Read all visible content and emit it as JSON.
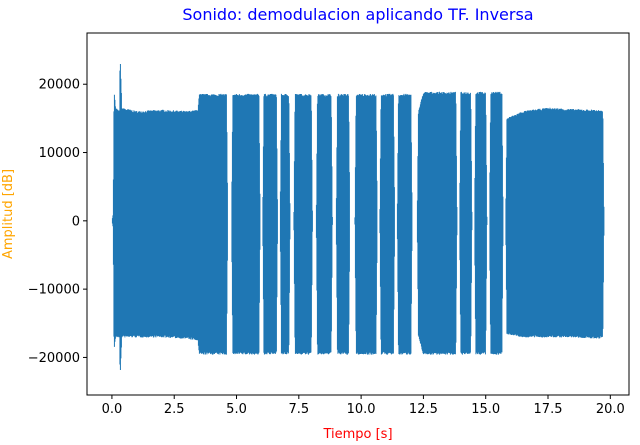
{
  "chart_data": {
    "type": "line",
    "title": "Sonido: demodulacion aplicando TF. Inversa",
    "xlabel": "Tiempo [s]",
    "ylabel": "Amplitud [dB]",
    "xlim": [
      -1.0,
      20.75
    ],
    "ylim": [
      -25500,
      27500
    ],
    "xticks": [
      0.0,
      2.5,
      5.0,
      7.5,
      10.0,
      12.5,
      15.0,
      17.5,
      20.0
    ],
    "xtick_labels": [
      "0.0",
      "2.5",
      "5.0",
      "7.5",
      "10.0",
      "12.5",
      "15.0",
      "17.5",
      "20.0"
    ],
    "yticks": [
      -20000,
      -10000,
      0,
      10000,
      20000
    ],
    "ytick_labels": [
      "−20000",
      "−10000",
      "0",
      "10000",
      "20000"
    ],
    "grid": false,
    "colors": {
      "line": "#1f77b4",
      "title": "#0000ff",
      "xlabel": "#ff0000",
      "ylabel": "#ffa500"
    },
    "series": [
      {
        "envelope_upper": [
          [
            0.0,
            0
          ],
          [
            0.05,
            1000
          ],
          [
            0.08,
            16000
          ],
          [
            0.1,
            18500
          ],
          [
            0.15,
            16500
          ],
          [
            0.3,
            16000
          ],
          [
            0.33,
            24500
          ],
          [
            0.4,
            16500
          ],
          [
            1.0,
            16000
          ],
          [
            2.0,
            16200
          ],
          [
            3.0,
            16000
          ],
          [
            3.45,
            16200
          ],
          [
            3.5,
            18500
          ],
          [
            4.6,
            18500
          ],
          [
            4.65,
            0
          ],
          [
            4.8,
            0
          ],
          [
            4.85,
            18500
          ],
          [
            5.9,
            18500
          ],
          [
            5.95,
            0
          ],
          [
            6.05,
            0
          ],
          [
            6.1,
            18500
          ],
          [
            6.6,
            18500
          ],
          [
            6.65,
            0
          ],
          [
            6.75,
            0
          ],
          [
            6.8,
            18500
          ],
          [
            7.1,
            18500
          ],
          [
            7.15,
            0
          ],
          [
            7.3,
            0
          ],
          [
            7.35,
            18500
          ],
          [
            8.0,
            18500
          ],
          [
            8.05,
            0
          ],
          [
            8.2,
            0
          ],
          [
            8.25,
            18500
          ],
          [
            8.8,
            18500
          ],
          [
            8.85,
            0
          ],
          [
            9.0,
            0
          ],
          [
            9.05,
            18500
          ],
          [
            9.5,
            18500
          ],
          [
            9.55,
            0
          ],
          [
            9.75,
            0
          ],
          [
            9.8,
            18500
          ],
          [
            10.6,
            18500
          ],
          [
            10.65,
            0
          ],
          [
            10.75,
            0
          ],
          [
            10.8,
            18500
          ],
          [
            11.3,
            18500
          ],
          [
            11.35,
            0
          ],
          [
            11.45,
            0
          ],
          [
            11.5,
            18500
          ],
          [
            12.0,
            18500
          ],
          [
            12.05,
            0
          ],
          [
            12.25,
            0
          ],
          [
            12.3,
            16000
          ],
          [
            12.5,
            18800
          ],
          [
            13.8,
            18800
          ],
          [
            13.85,
            0
          ],
          [
            13.95,
            0
          ],
          [
            14.0,
            18800
          ],
          [
            14.4,
            18800
          ],
          [
            14.45,
            0
          ],
          [
            14.55,
            0
          ],
          [
            14.6,
            18800
          ],
          [
            15.0,
            18800
          ],
          [
            15.05,
            0
          ],
          [
            15.15,
            0
          ],
          [
            15.2,
            18800
          ],
          [
            15.65,
            18800
          ],
          [
            15.7,
            0
          ],
          [
            15.8,
            0
          ],
          [
            15.85,
            15000
          ],
          [
            16.5,
            16000
          ],
          [
            17.5,
            16500
          ],
          [
            18.5,
            16300
          ],
          [
            19.5,
            16200
          ],
          [
            19.7,
            16000
          ],
          [
            19.75,
            0
          ]
        ],
        "envelope_lower": [
          [
            0.0,
            0
          ],
          [
            0.05,
            -1000
          ],
          [
            0.08,
            -17000
          ],
          [
            0.1,
            -18500
          ],
          [
            0.15,
            -17000
          ],
          [
            0.3,
            -17000
          ],
          [
            0.33,
            -23000
          ],
          [
            0.4,
            -17000
          ],
          [
            1.0,
            -17000
          ],
          [
            2.0,
            -17000
          ],
          [
            3.0,
            -17200
          ],
          [
            3.45,
            -17500
          ],
          [
            3.5,
            -19500
          ],
          [
            4.6,
            -19500
          ],
          [
            4.65,
            0
          ],
          [
            4.8,
            0
          ],
          [
            4.85,
            -19500
          ],
          [
            5.9,
            -19500
          ],
          [
            5.95,
            0
          ],
          [
            6.05,
            0
          ],
          [
            6.1,
            -19500
          ],
          [
            6.6,
            -19500
          ],
          [
            6.65,
            0
          ],
          [
            6.75,
            0
          ],
          [
            6.8,
            -19500
          ],
          [
            7.1,
            -19500
          ],
          [
            7.15,
            0
          ],
          [
            7.3,
            0
          ],
          [
            7.35,
            -19500
          ],
          [
            8.0,
            -19500
          ],
          [
            8.05,
            0
          ],
          [
            8.2,
            0
          ],
          [
            8.25,
            -19500
          ],
          [
            8.8,
            -19500
          ],
          [
            8.85,
            0
          ],
          [
            9.0,
            0
          ],
          [
            9.05,
            -19500
          ],
          [
            9.5,
            -19500
          ],
          [
            9.55,
            0
          ],
          [
            9.75,
            0
          ],
          [
            9.8,
            -19500
          ],
          [
            10.6,
            -19500
          ],
          [
            10.65,
            0
          ],
          [
            10.75,
            0
          ],
          [
            10.8,
            -19500
          ],
          [
            11.3,
            -19500
          ],
          [
            11.35,
            0
          ],
          [
            11.45,
            0
          ],
          [
            11.5,
            -19500
          ],
          [
            12.0,
            -19500
          ],
          [
            12.05,
            0
          ],
          [
            12.25,
            0
          ],
          [
            12.3,
            -17000
          ],
          [
            12.5,
            -19500
          ],
          [
            13.8,
            -19500
          ],
          [
            13.85,
            0
          ],
          [
            13.95,
            0
          ],
          [
            14.0,
            -19500
          ],
          [
            14.4,
            -19500
          ],
          [
            14.45,
            0
          ],
          [
            14.55,
            0
          ],
          [
            14.6,
            -19500
          ],
          [
            15.0,
            -19500
          ],
          [
            15.05,
            0
          ],
          [
            15.15,
            0
          ],
          [
            15.2,
            -19500
          ],
          [
            15.65,
            -19500
          ],
          [
            15.7,
            0
          ],
          [
            15.8,
            0
          ],
          [
            15.85,
            -16500
          ],
          [
            16.5,
            -17000
          ],
          [
            17.5,
            -17000
          ],
          [
            18.5,
            -17000
          ],
          [
            19.5,
            -17200
          ],
          [
            19.7,
            -17000
          ],
          [
            19.75,
            0
          ]
        ],
        "x_range": [
          0.0,
          19.75
        ]
      }
    ]
  }
}
